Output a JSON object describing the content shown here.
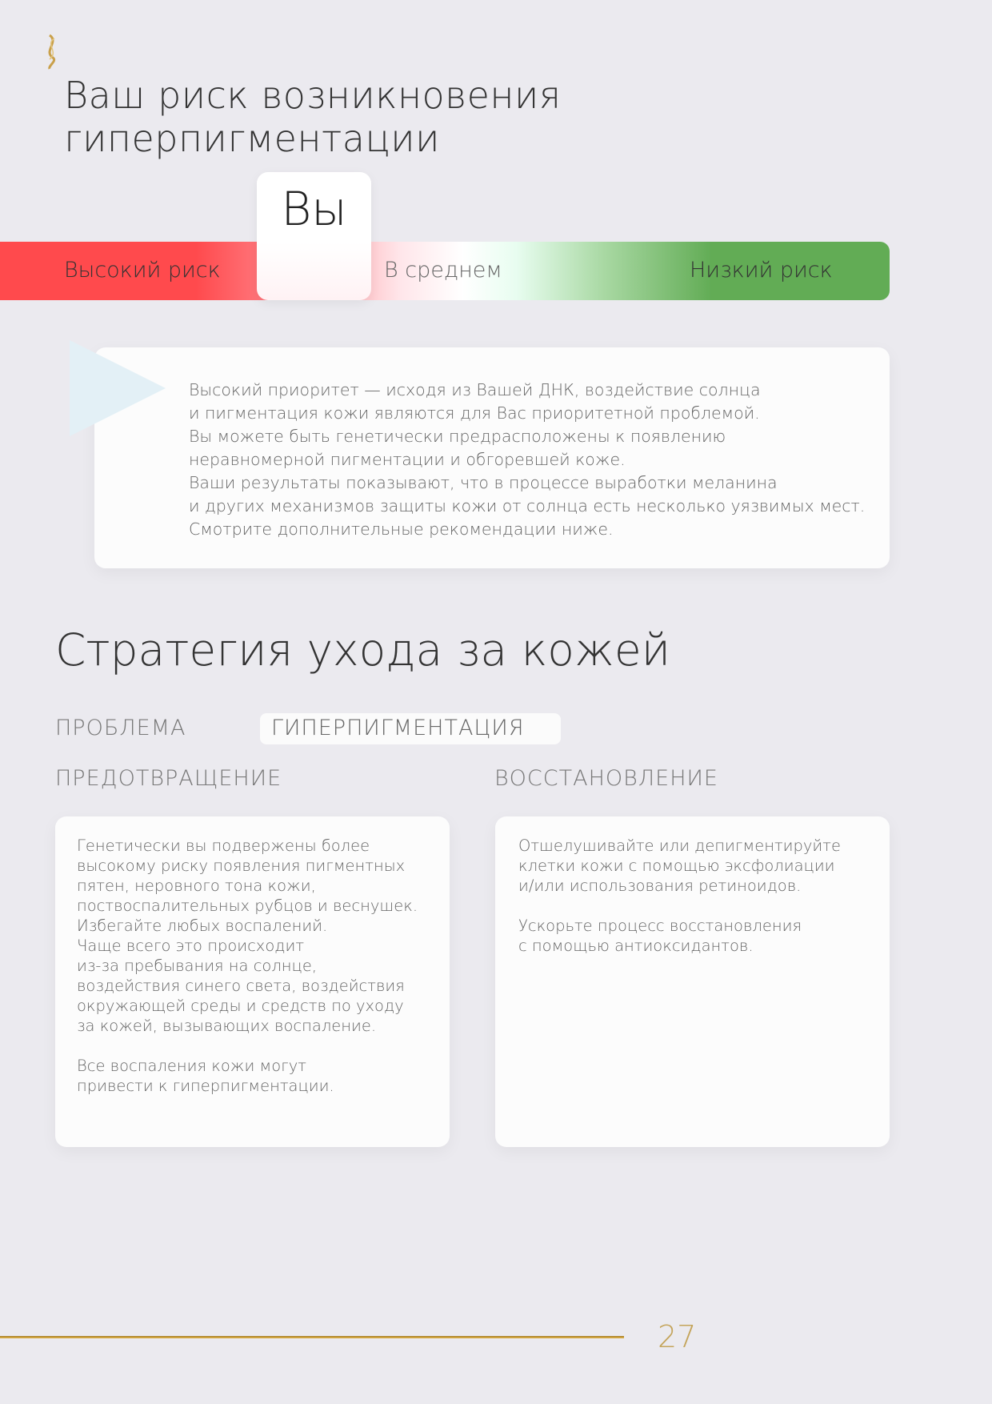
{
  "logo": {
    "icon": "dna-helix-icon",
    "color": "#c9a04a"
  },
  "title": [
    "Ваш риск возникновения",
    "гиперпигментации"
  ],
  "risk_scale": {
    "marker_label": "Вы",
    "labels": {
      "high": "Высокий риск",
      "medium": "В среднем",
      "low": "Низкий риск"
    },
    "position": "high-to-medium boundary",
    "colors": {
      "high": "#ff4a4d",
      "medium": "#ffffff",
      "low": "#62ac55"
    }
  },
  "result_card": {
    "lines": [
      "Высокий приоритет — исходя из Вашей ДНК, воздействие солнца",
      "и пигментация кожи являются для Вас приоритетной проблемой.",
      "Вы можете быть генетически предрасположены к появлению",
      "неравномерной пигментации и обгоревшей коже.",
      "Ваши результаты показывают, что в процессе выработки меланина",
      "и других механизмов защиты кожи от солнца есть несколько уязвимых мест.",
      "Смотрите дополнительные рекомендации ниже."
    ]
  },
  "strategy": {
    "title": "Стратегия ухода за кожей",
    "problem_label": "ПРОБЛЕМА",
    "problem_value": "ГИПЕРПИГМЕНТАЦИЯ",
    "prevention": {
      "heading": "ПРЕДОТВРАЩЕНИЕ",
      "text": "Генетически вы подвержены более\nвысокому риску появления пигментных\nпятен, неровного тона кожи,\nпоствоспалительных рубцов и веснушек.\nИзбегайте любых воспалений.\nЧаще всего это происходит\nиз-за пребывания на солнце,\nвоздействия синего света, воздействия\nокружающей среды и средств по уходу\nза кожей, вызывающих воспаление.\n\nВсе воспаления кожи могут\nпривести к гиперпигментации."
    },
    "recovery": {
      "heading": "ВОССТАНОВЛЕНИЕ",
      "text": "Отшелушивайте или депигментируйте\nклетки кожи с помощью эксфолиации\nи/или использования ретиноидов.\n\nУскорьте процесс восстановления\nс помощью антиоксидантов."
    }
  },
  "footer": {
    "page_number": "27",
    "accent": "#c4a45a"
  }
}
